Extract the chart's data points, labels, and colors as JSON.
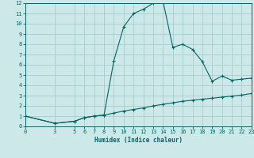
{
  "xlabel": "Humidex (Indice chaleur)",
  "background_color": "#cce8e8",
  "grid_color": "#aacccc",
  "line_color": "#006666",
  "marker": "+",
  "line1_x": [
    0,
    3,
    5,
    6,
    7,
    8,
    9,
    10,
    11,
    12,
    13,
    14,
    15,
    16,
    17,
    18,
    19,
    20,
    21,
    22,
    23
  ],
  "line1_y": [
    1.0,
    0.3,
    0.5,
    0.85,
    1.0,
    1.1,
    1.3,
    1.5,
    1.65,
    1.8,
    2.0,
    2.15,
    2.3,
    2.45,
    2.55,
    2.65,
    2.75,
    2.85,
    2.95,
    3.05,
    3.2
  ],
  "line2_x": [
    0,
    3,
    5,
    6,
    7,
    8,
    9,
    10,
    11,
    12,
    13,
    14,
    15,
    16,
    17,
    18,
    19,
    20,
    21,
    22,
    23
  ],
  "line2_y": [
    1.0,
    0.3,
    0.5,
    0.85,
    1.0,
    1.1,
    6.4,
    9.7,
    11.0,
    11.4,
    12.0,
    12.2,
    7.7,
    8.0,
    7.5,
    6.3,
    4.4,
    4.9,
    4.5,
    4.6,
    4.7
  ],
  "xlim": [
    0,
    23
  ],
  "ylim": [
    0,
    12
  ],
  "yticks": [
    0,
    1,
    2,
    3,
    4,
    5,
    6,
    7,
    8,
    9,
    10,
    11,
    12
  ],
  "xticks": [
    0,
    3,
    5,
    6,
    7,
    8,
    9,
    10,
    11,
    12,
    13,
    14,
    15,
    16,
    17,
    18,
    19,
    20,
    21,
    22,
    23
  ]
}
